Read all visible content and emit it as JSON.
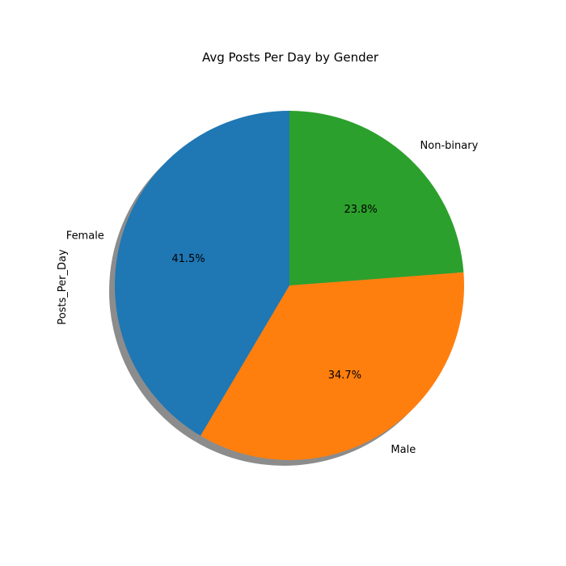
{
  "chart_data": {
    "type": "pie",
    "title": "Avg Posts Per Day by Gender",
    "ylabel": "Posts_Per_Day",
    "categories": [
      "Female",
      "Male",
      "Non-binary"
    ],
    "values": [
      41.5,
      34.7,
      23.8
    ],
    "percent_labels": [
      "41.5%",
      "34.7%",
      "23.8%"
    ],
    "colors": [
      "#1f77b4",
      "#ff7f0e",
      "#2ca02c"
    ],
    "shadow_color": "#7f7f7f",
    "start_angle_deg": 90,
    "direction": "counterclockwise",
    "shadow": true,
    "legend": "none"
  }
}
